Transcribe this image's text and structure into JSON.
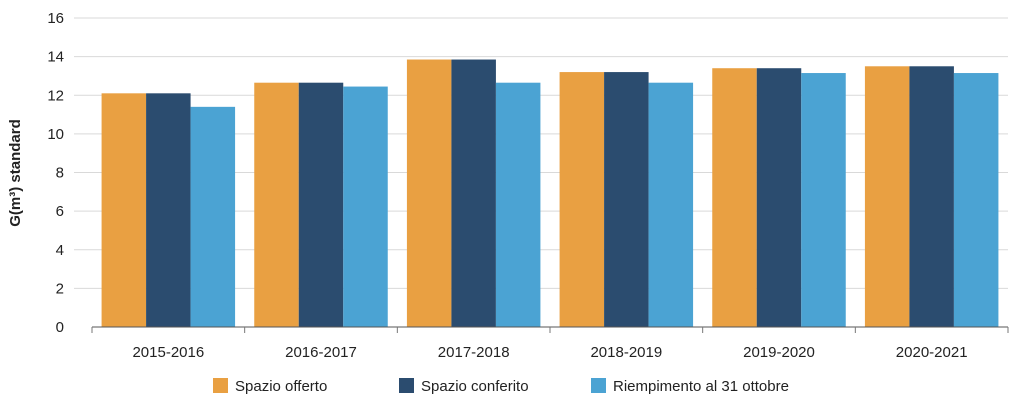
{
  "chart_data": {
    "type": "bar",
    "title": "",
    "xlabel": "",
    "ylabel": "G(m³) standard",
    "ylim": [
      0,
      16
    ],
    "yticks": [
      0,
      2,
      4,
      6,
      8,
      10,
      12,
      14,
      16
    ],
    "grid": true,
    "legend_position": "bottom",
    "categories": [
      "2015-2016",
      "2016-2017",
      "2017-2018",
      "2018-2019",
      "2019-2020",
      "2020-2021"
    ],
    "series": [
      {
        "name": "Spazio offerto",
        "color": "#E9A042",
        "values": [
          12.1,
          12.65,
          13.85,
          13.2,
          13.4,
          13.5
        ]
      },
      {
        "name": "Spazio conferito",
        "color": "#2B4C6F",
        "values": [
          12.1,
          12.65,
          13.85,
          13.2,
          13.4,
          13.5
        ]
      },
      {
        "name": "Riempimento al 31 ottobre",
        "color": "#4BA3D3",
        "values": [
          11.4,
          12.45,
          12.65,
          12.65,
          13.15,
          13.15
        ]
      }
    ]
  }
}
